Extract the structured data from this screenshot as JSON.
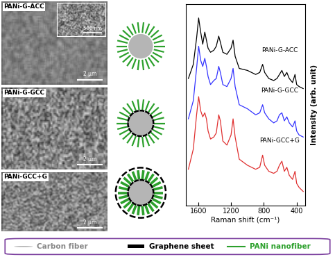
{
  "sem_images": [
    {
      "label": "PANi-G-ACC",
      "scale_bar": "2 µm",
      "inset_scale_bar": "500 nm"
    },
    {
      "label": "PANi-G-GCC",
      "scale_bar": "2 µm"
    },
    {
      "label": "PANi-GCC+G",
      "scale_bar": "2 µm"
    }
  ],
  "legend": {
    "items": [
      {
        "label": "Carbon fiber",
        "color": "#b5b5b5"
      },
      {
        "label": "Graphene sheet",
        "color": "#000000"
      },
      {
        "label": "PANi nanofiber",
        "color": "#2ca02c"
      }
    ]
  },
  "chart_data": {
    "type": "line",
    "x_label": "Raman shift (cm⁻¹)",
    "y_label": "Intensity (arb. unit)",
    "x": [
      1720,
      1660,
      1620,
      1595,
      1570,
      1545,
      1520,
      1500,
      1480,
      1450,
      1410,
      1380,
      1350,
      1330,
      1300,
      1250,
      1200,
      1175,
      1150,
      1100,
      1000,
      900,
      850,
      815,
      790,
      740,
      680,
      640,
      610,
      580,
      550,
      520,
      490,
      450,
      420,
      400,
      370,
      320
    ],
    "xlim": [
      1750,
      300
    ],
    "xticks": [
      1600,
      1200,
      800,
      400
    ],
    "ylim": [
      0,
      10
    ],
    "yticks": [],
    "tick_labels": "x",
    "series": [
      {
        "name": "PANi-G-ACC",
        "color": "#000000",
        "values": [
          6.3,
          7.0,
          8.3,
          9.3,
          8.6,
          8.0,
          8.6,
          8.2,
          7.8,
          7.6,
          7.7,
          7.9,
          8.4,
          8.1,
          7.6,
          7.5,
          7.8,
          8.2,
          7.4,
          6.8,
          6.7,
          6.5,
          6.6,
          7.0,
          6.6,
          6.3,
          6.2,
          6.3,
          6.5,
          6.7,
          6.4,
          6.6,
          6.3,
          6.1,
          6.5,
          6.0,
          5.9,
          5.8
        ]
      },
      {
        "name": "PANi-G-GCC",
        "color": "#3333ff",
        "values": [
          4.3,
          5.2,
          6.8,
          7.9,
          7.2,
          6.9,
          7.3,
          6.9,
          6.4,
          6.0,
          6.2,
          6.3,
          6.9,
          6.6,
          6.0,
          5.9,
          6.3,
          6.8,
          5.9,
          5.0,
          4.8,
          4.5,
          4.6,
          5.0,
          4.6,
          4.3,
          4.1,
          4.2,
          4.5,
          4.6,
          4.2,
          4.4,
          4.1,
          3.9,
          4.2,
          3.7,
          3.5,
          3.4
        ]
      },
      {
        "name": "PANi-GCC+G",
        "color": "#e03030",
        "values": [
          1.8,
          2.8,
          4.5,
          5.4,
          4.7,
          4.4,
          4.6,
          4.3,
          3.7,
          3.3,
          3.4,
          3.6,
          4.5,
          4.2,
          3.2,
          3.0,
          3.5,
          4.3,
          3.4,
          2.3,
          2.0,
          1.8,
          1.9,
          2.5,
          2.0,
          1.7,
          1.6,
          1.7,
          2.0,
          2.2,
          1.7,
          1.9,
          1.5,
          1.3,
          1.7,
          1.1,
          0.9,
          0.7
        ]
      }
    ]
  }
}
